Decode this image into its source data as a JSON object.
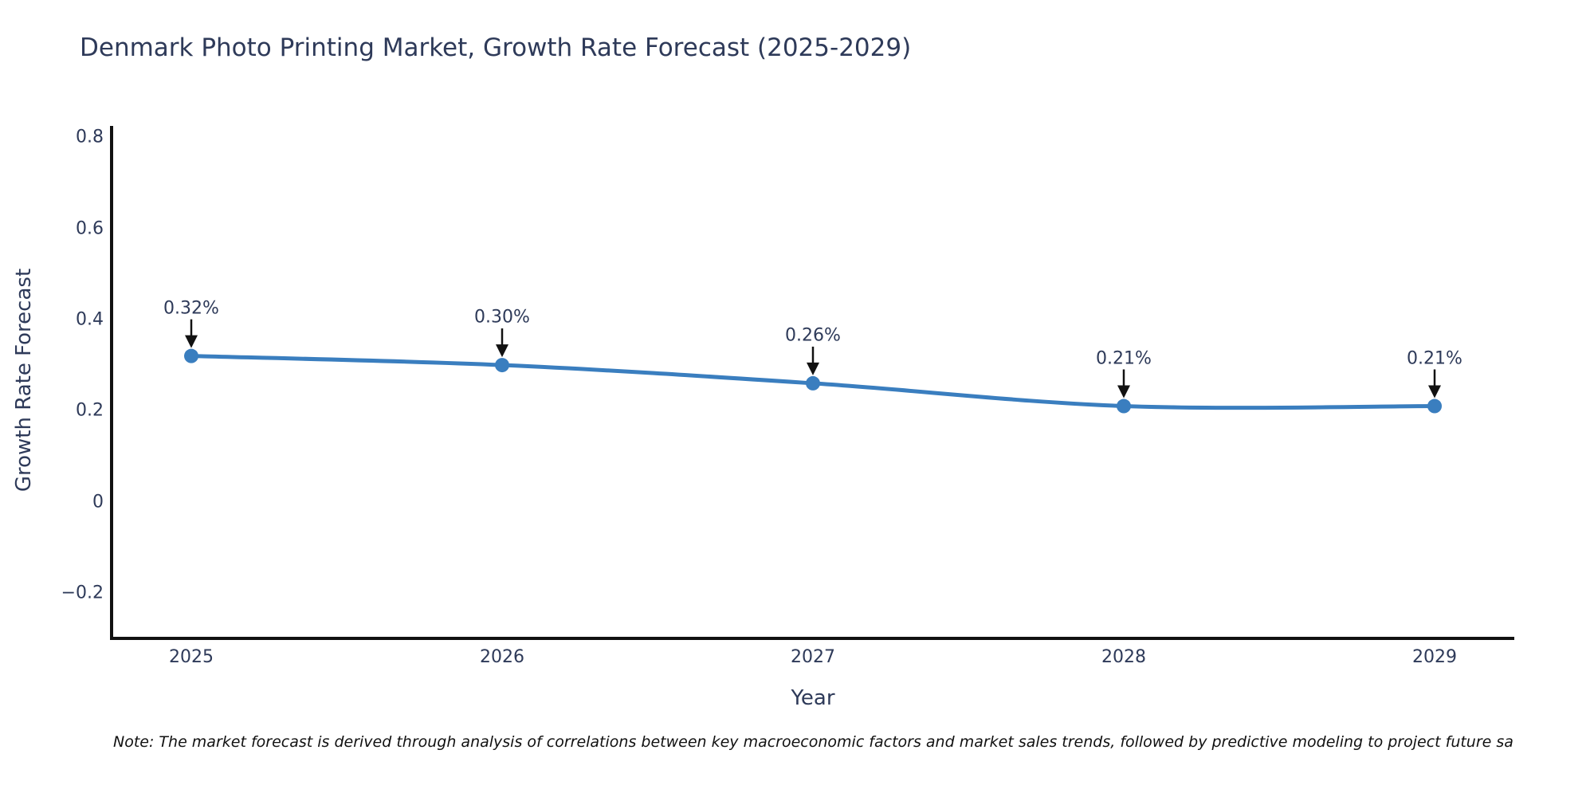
{
  "title": "Denmark Photo Printing Market, Growth Rate Forecast (2025-2029)",
  "note": "Note: The market forecast is derived through analysis of correlations between key macroeconomic factors and market sales trends, followed by predictive modeling to project future sa",
  "colors": {
    "line": "#3a7ebf",
    "marker": "#3a7ebf",
    "axis": "#111111",
    "arrow": "#111111",
    "text": "#2e3a59"
  },
  "chart_data": {
    "type": "line",
    "title": "Denmark Photo Printing Market, Growth Rate Forecast (2025-2029)",
    "categories": [
      "2025",
      "2026",
      "2027",
      "2028",
      "2029"
    ],
    "series": [
      {
        "name": "Growth Rate Forecast",
        "values": [
          0.32,
          0.3,
          0.26,
          0.21,
          0.21
        ]
      }
    ],
    "annotations": [
      "0.32%",
      "0.30%",
      "0.26%",
      "0.21%",
      "0.21%"
    ],
    "xlabel": "Year",
    "ylabel": "Growth Rate Forecast",
    "ylim": [
      -0.3,
      0.825
    ],
    "y_ticks": [
      -0.2,
      0,
      0.2,
      0.4,
      0.6,
      0.8
    ],
    "y_tick_labels": [
      "−0.2",
      "0",
      "0.2",
      "0.4",
      "0.6",
      "0.8"
    ],
    "line_shape": "spline",
    "grid": false,
    "legend_position": "none",
    "markers": true
  }
}
